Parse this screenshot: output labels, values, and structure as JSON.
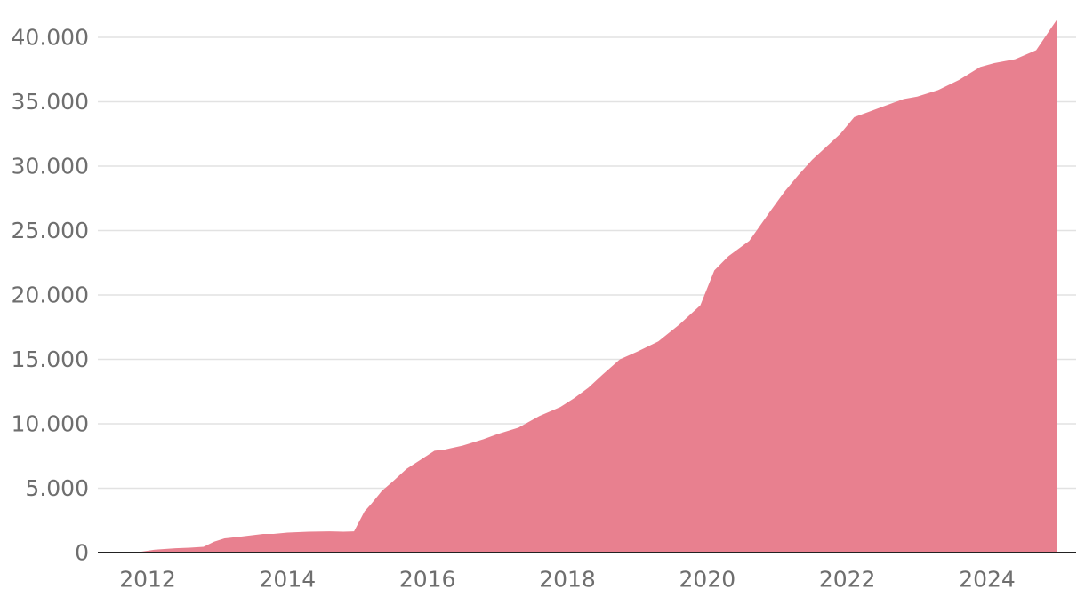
{
  "chart_data": {
    "type": "area",
    "title": "",
    "xlabel": "",
    "ylabel": "",
    "xlim": [
      2011.65,
      2025.08
    ],
    "ylim": [
      0,
      40000
    ],
    "y_ticks": [
      0,
      5000,
      10000,
      15000,
      20000,
      25000,
      30000,
      35000,
      40000
    ],
    "y_tick_labels": [
      "0",
      "5.000",
      "10.000",
      "15.000",
      "20.000",
      "25.000",
      "30.000",
      "35.000",
      "40.000"
    ],
    "x_ticks": [
      2012,
      2014,
      2016,
      2018,
      2020,
      2022,
      2024
    ],
    "x_tick_labels": [
      "2012",
      "2014",
      "2016",
      "2018",
      "2020",
      "2022",
      "2024"
    ],
    "grid": "horizontal",
    "colors": {
      "area": "#e8808f",
      "grid": "#e2e2e2",
      "baseline": "#222222",
      "tick_text": "#6e6e6e"
    },
    "series": [
      {
        "x": [
          2011.65,
          2011.9,
          2012.1,
          2012.4,
          2012.6,
          2012.8,
          2012.95,
          2013.1,
          2013.35,
          2013.65,
          2013.8,
          2014.0,
          2014.3,
          2014.6,
          2014.8,
          2014.95,
          2015.1,
          2015.2,
          2015.35,
          2015.5,
          2015.7,
          2015.9,
          2016.1,
          2016.25,
          2016.5,
          2016.8,
          2017.0,
          2017.3,
          2017.6,
          2017.9,
          2018.1,
          2018.3,
          2018.5,
          2018.75,
          2019.0,
          2019.3,
          2019.6,
          2019.9,
          2020.1,
          2020.3,
          2020.6,
          2020.9,
          2021.1,
          2021.3,
          2021.5,
          2021.7,
          2021.9,
          2022.1,
          2022.3,
          2022.5,
          2022.8,
          2023.0,
          2023.3,
          2023.6,
          2023.9,
          2024.1,
          2024.4,
          2024.7,
          2024.9,
          2025.0
        ],
        "y": [
          0,
          60,
          220,
          340,
          380,
          450,
          850,
          1100,
          1250,
          1450,
          1450,
          1550,
          1620,
          1650,
          1620,
          1650,
          3200,
          3800,
          4800,
          5500,
          6500,
          7200,
          7900,
          8000,
          8300,
          8800,
          9200,
          9700,
          10600,
          11300,
          12000,
          12800,
          13800,
          15000,
          15600,
          16400,
          17700,
          19200,
          21900,
          23000,
          24200,
          26500,
          28000,
          29300,
          30500,
          31500,
          32500,
          33800,
          34200,
          34600,
          35200,
          35400,
          35900,
          36700,
          37700,
          38000,
          38300,
          39000,
          40600,
          41400
        ]
      }
    ]
  }
}
